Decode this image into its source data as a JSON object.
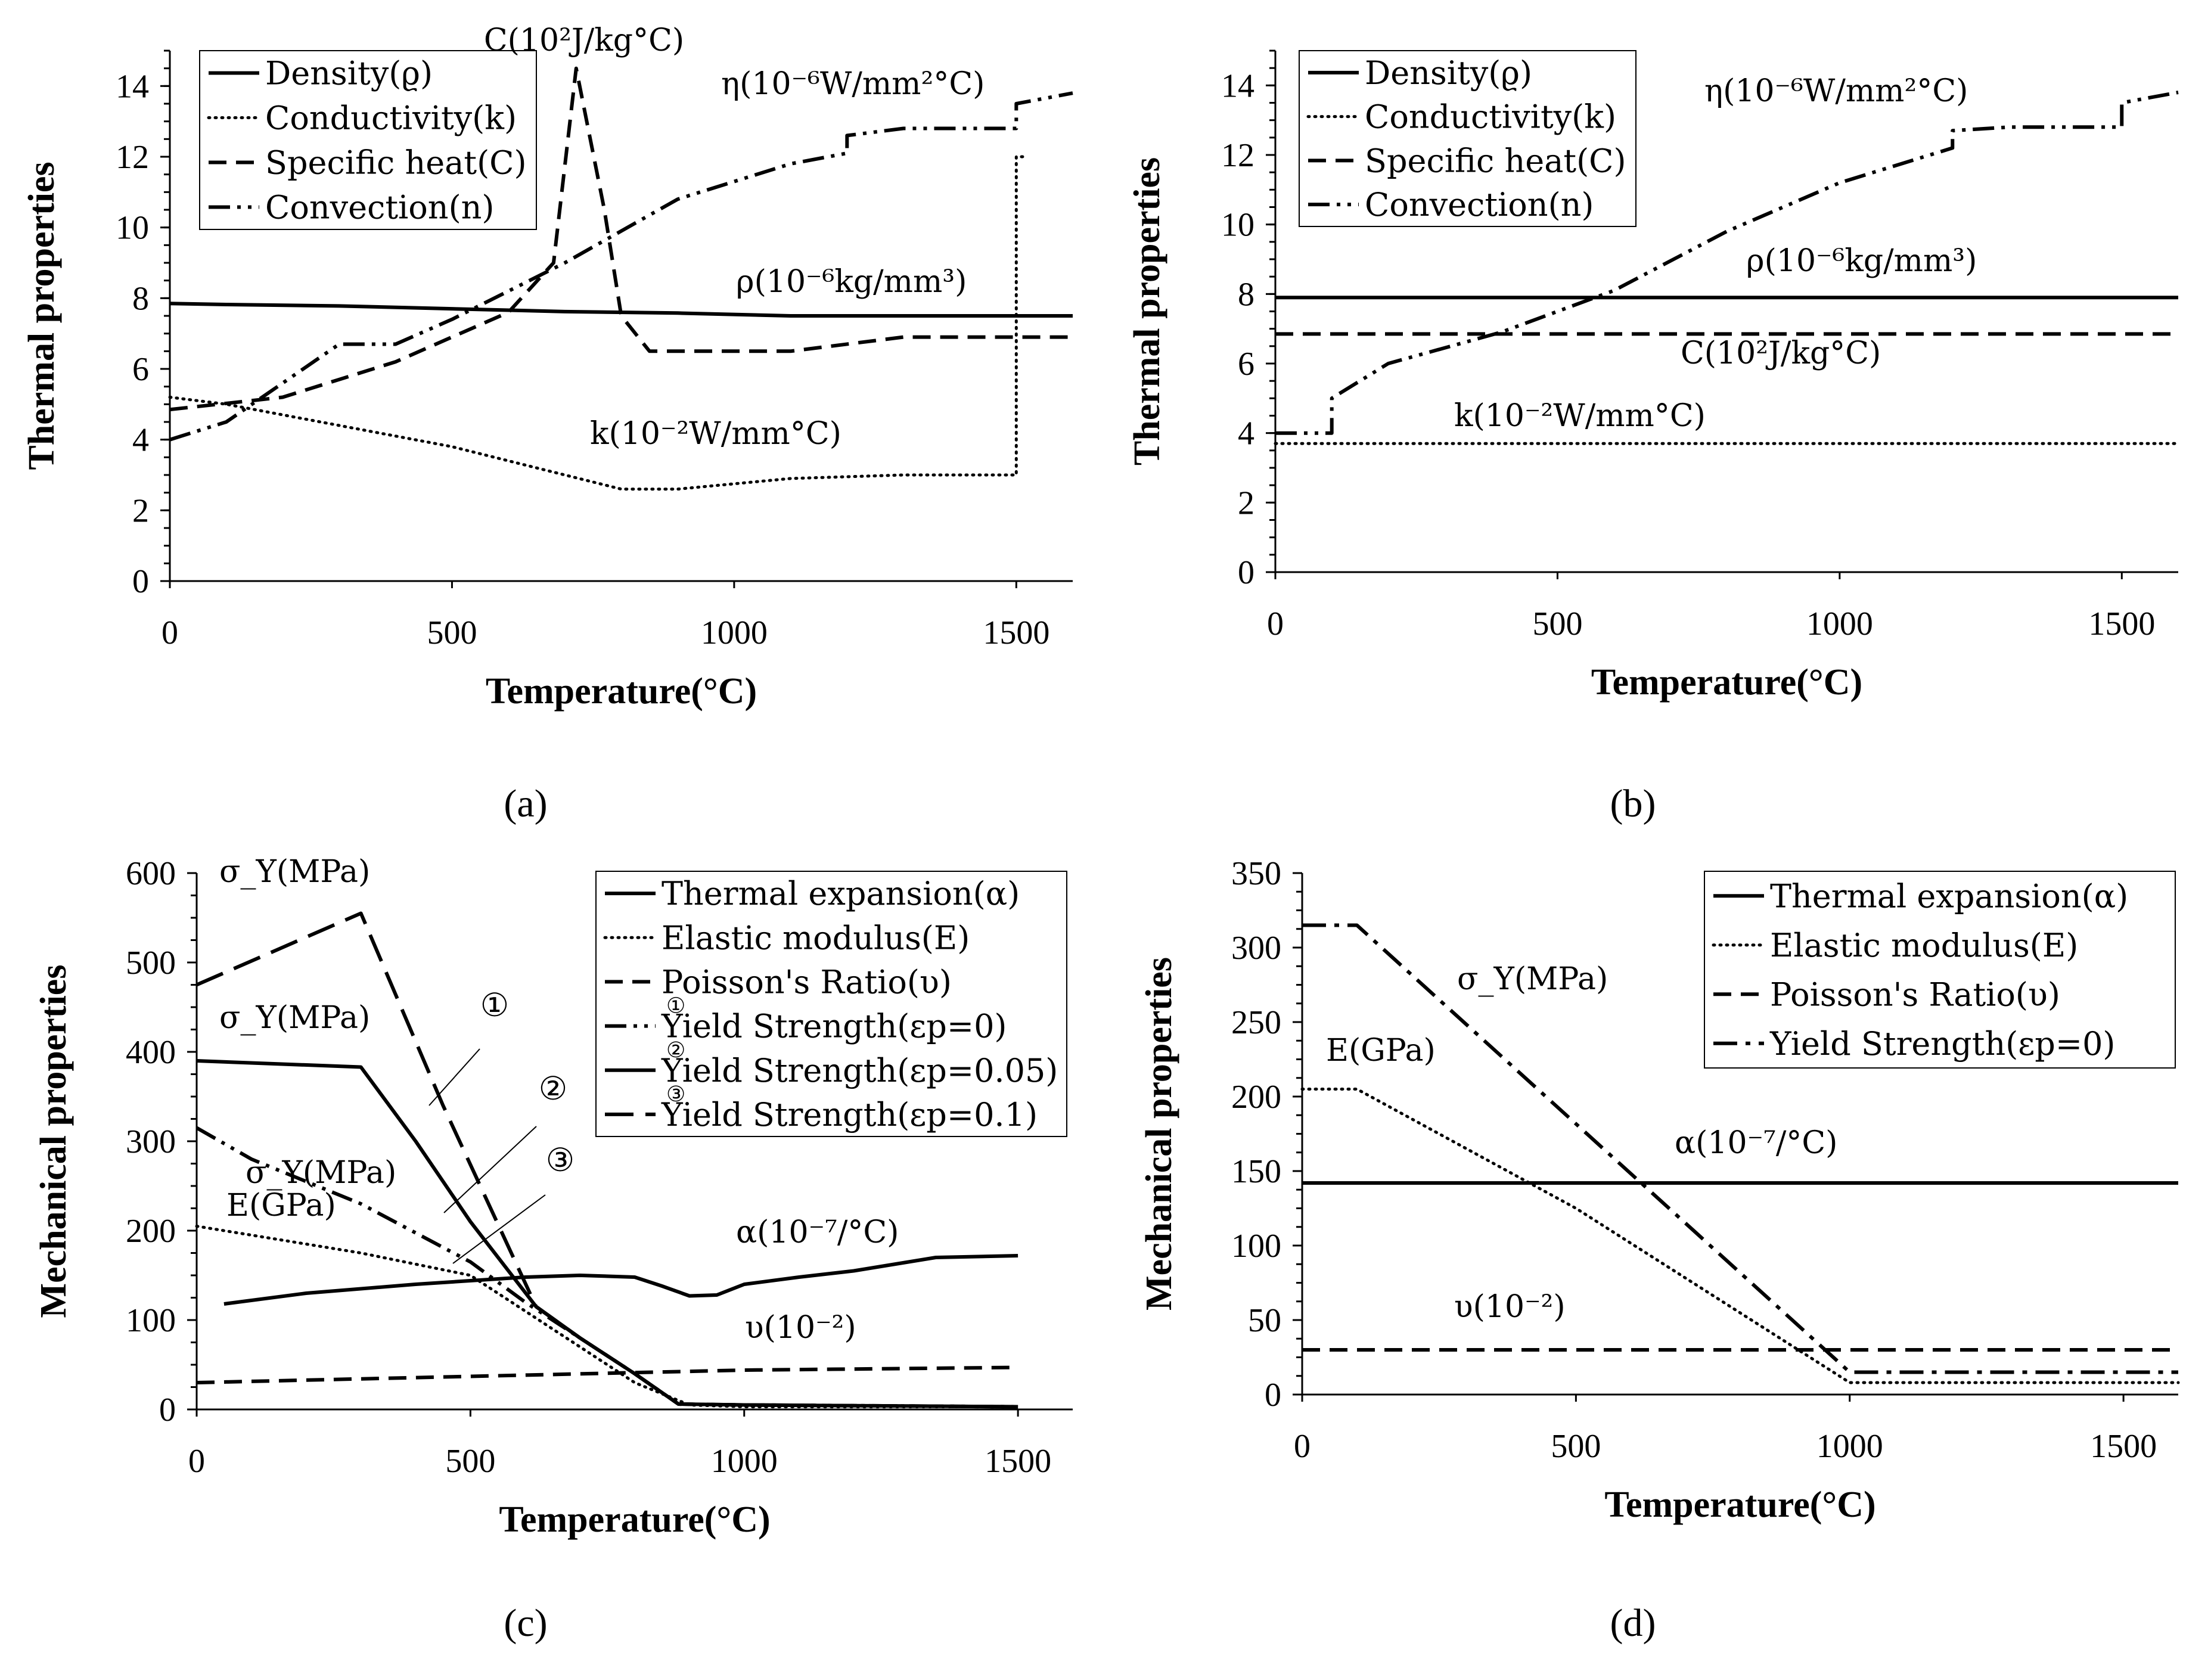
{
  "chart_data": [
    {
      "id": "a",
      "panel_label": "(a)",
      "type": "line",
      "xlabel": "Temperature(°C)",
      "ylabel": "Thermal properties",
      "xlim": [
        0,
        1600
      ],
      "ylim": [
        0,
        15
      ],
      "xticks": [
        0,
        500,
        1000,
        1500
      ],
      "yticks": [
        0,
        2,
        4,
        6,
        8,
        10,
        12,
        14
      ],
      "legend": [
        "Density(ϱ)",
        "Conductivity(k)",
        "Specific heat(C)",
        "Convection(n)"
      ],
      "legend_position": "top-left",
      "series": [
        {
          "name": "Density(ϱ)",
          "style": "solid",
          "x": [
            0,
            100,
            300,
            500,
            700,
            900,
            1100,
            1300,
            1500,
            1600
          ],
          "y": [
            7.85,
            7.82,
            7.78,
            7.7,
            7.62,
            7.58,
            7.5,
            7.5,
            7.5,
            7.5
          ]
        },
        {
          "name": "Conductivity(k)",
          "style": "dotted",
          "x": [
            0,
            100,
            300,
            500,
            700,
            800,
            900,
            1100,
            1300,
            1500,
            1500,
            1520
          ],
          "y": [
            5.2,
            5.0,
            4.4,
            3.8,
            3.0,
            2.6,
            2.6,
            2.9,
            3.0,
            3.0,
            12.0,
            12.0
          ]
        },
        {
          "name": "Specific heat(C)",
          "style": "dashed",
          "x": [
            0,
            200,
            400,
            600,
            680,
            720,
            770,
            800,
            850,
            900,
            1100,
            1300,
            1600
          ],
          "y": [
            4.85,
            5.2,
            6.2,
            7.6,
            9.0,
            14.5,
            10.5,
            7.5,
            6.5,
            6.5,
            6.5,
            6.9,
            6.9
          ]
        },
        {
          "name": "Convection(n)",
          "style": "dash-dot-dot",
          "x": [
            0,
            100,
            300,
            400,
            500,
            700,
            900,
            1100,
            1200,
            1200,
            1300,
            1500,
            1500,
            1600
          ],
          "y": [
            4.0,
            4.5,
            6.7,
            6.7,
            7.4,
            9.0,
            10.8,
            11.8,
            12.1,
            12.6,
            12.8,
            12.8,
            13.5,
            13.8
          ]
        }
      ],
      "annotations": [
        "C(10²J/kg°C)",
        "η(10⁻⁶W/mm²°C)",
        "ρ(10⁻⁶kg/mm³)",
        "k(10⁻²W/mm°C)"
      ]
    },
    {
      "id": "b",
      "panel_label": "(b)",
      "type": "line",
      "xlabel": "Temperature(°C)",
      "ylabel": "Thermal properties",
      "xlim": [
        0,
        1600
      ],
      "ylim": [
        0,
        15
      ],
      "xticks": [
        0,
        500,
        1000,
        1500
      ],
      "yticks": [
        0,
        2,
        4,
        6,
        8,
        10,
        12,
        14
      ],
      "legend": [
        "Density(ϱ)",
        "Conductivity(k)",
        "Specific heat(C)",
        "Convection(n)"
      ],
      "legend_position": "top-left",
      "series": [
        {
          "name": "Density(ϱ)",
          "style": "solid",
          "x": [
            0,
            1600
          ],
          "y": [
            7.9,
            7.9
          ]
        },
        {
          "name": "Conductivity(k)",
          "style": "dotted",
          "x": [
            0,
            1600
          ],
          "y": [
            3.7,
            3.7
          ]
        },
        {
          "name": "Specific heat(C)",
          "style": "dashed",
          "x": [
            0,
            1600
          ],
          "y": [
            6.85,
            6.85
          ]
        },
        {
          "name": "Convection(n)",
          "style": "dash-dot-dot",
          "x": [
            0,
            100,
            100,
            200,
            400,
            600,
            800,
            1000,
            1200,
            1200,
            1300,
            1500,
            1500,
            1600
          ],
          "y": [
            4.0,
            4.0,
            5.0,
            6.0,
            6.9,
            8.1,
            9.8,
            11.2,
            12.2,
            12.7,
            12.8,
            12.8,
            13.5,
            13.8
          ]
        }
      ],
      "annotations": [
        "η(10⁻⁶W/mm²°C)",
        "ρ(10⁻⁶kg/mm³)",
        "C(10²J/kg°C)",
        "k(10⁻²W/mm°C)"
      ]
    },
    {
      "id": "c",
      "panel_label": "(c)",
      "type": "line",
      "xlabel": "Temperature(°C)",
      "ylabel": "Mechanical properties",
      "xlim": [
        0,
        1600
      ],
      "ylim": [
        0,
        600
      ],
      "xticks": [
        0,
        500,
        1000,
        1500
      ],
      "yticks": [
        0,
        100,
        200,
        300,
        400,
        500,
        600
      ],
      "legend": [
        "Thermal expansion(α)",
        "Elastic modulus(E)",
        "Poisson's Ratio(υ)",
        "Yield Strength(εp=0)",
        "Yield Strength(εp=0.05)",
        "Yield Strength(εp=0.1)"
      ],
      "legend_markers": [
        "",
        "",
        "",
        "①",
        "②",
        "③"
      ],
      "legend_position": "top-right",
      "series": [
        {
          "name": "Thermal expansion(α)",
          "style": "solid",
          "x": [
            50,
            200,
            400,
            600,
            700,
            800,
            850,
            900,
            950,
            1000,
            1100,
            1200,
            1300,
            1350,
            1500
          ],
          "y": [
            118,
            130,
            140,
            148,
            150,
            148,
            138,
            127,
            128,
            140,
            148,
            155,
            165,
            170,
            172
          ]
        },
        {
          "name": "Elastic modulus(E)",
          "style": "dotted",
          "x": [
            0,
            100,
            300,
            500,
            600,
            700,
            800,
            900,
            1000,
            1500
          ],
          "y": [
            205,
            195,
            175,
            150,
            110,
            70,
            30,
            5,
            3,
            3
          ]
        },
        {
          "name": "Poisson's Ratio(υ)",
          "style": "dashed",
          "x": [
            0,
            500,
            1000,
            1500
          ],
          "y": [
            30,
            37,
            44,
            47
          ]
        },
        {
          "name": "Yield Strength(εp=0)",
          "style": "dash-dot-dot",
          "x": [
            0,
            100,
            300,
            500,
            600,
            700,
            800,
            880,
            1000,
            1500
          ],
          "y": [
            315,
            280,
            230,
            165,
            120,
            80,
            40,
            6,
            5,
            3
          ]
        },
        {
          "name": "Yield Strength(εp=0.05)",
          "style": "solid",
          "x": [
            0,
            300,
            400,
            500,
            620,
            700,
            800,
            880,
            1000,
            1500
          ],
          "y": [
            390,
            383,
            300,
            210,
            115,
            80,
            40,
            6,
            5,
            3
          ]
        },
        {
          "name": "Yield Strength(εp=0.1)",
          "style": "long-dash",
          "x": [
            0,
            300,
            450,
            620,
            700,
            800,
            880,
            1000,
            1500
          ],
          "y": [
            475,
            555,
            340,
            115,
            80,
            40,
            6,
            5,
            3
          ]
        }
      ],
      "annotations": [
        "σ_Y(MPa)",
        "σ_Y(MPa)",
        "σ_Y(MPa)",
        "E(GPa)",
        "α(10⁻⁷/°C)",
        "υ(10⁻²)",
        "①",
        "②",
        "③"
      ]
    },
    {
      "id": "d",
      "panel_label": "(d)",
      "type": "line",
      "xlabel": "Temperature(°C)",
      "ylabel": "Mechanical properties",
      "xlim": [
        0,
        1600
      ],
      "ylim": [
        0,
        350
      ],
      "xticks": [
        0,
        500,
        1000,
        1500
      ],
      "yticks": [
        0,
        50,
        100,
        150,
        200,
        250,
        300,
        350
      ],
      "legend": [
        "Thermal expansion(α)",
        "Elastic modulus(E)",
        "Poisson's Ratio(υ)",
        "Yield Strength(εp=0)"
      ],
      "legend_position": "top-right",
      "series": [
        {
          "name": "Thermal expansion(α)",
          "style": "solid",
          "x": [
            0,
            1600
          ],
          "y": [
            142,
            142
          ]
        },
        {
          "name": "Elastic modulus(E)",
          "style": "dotted",
          "x": [
            0,
            100,
            500,
            1000,
            1600
          ],
          "y": [
            205,
            205,
            125,
            8,
            8
          ]
        },
        {
          "name": "Poisson's Ratio(υ)",
          "style": "dashed",
          "x": [
            0,
            1600
          ],
          "y": [
            30,
            30
          ]
        },
        {
          "name": "Yield Strength(εp=0)",
          "style": "dash-dot",
          "x": [
            0,
            100,
            1000,
            1600
          ],
          "y": [
            315,
            315,
            15,
            15
          ]
        }
      ],
      "annotations": [
        "σ_Y(MPa)",
        "E(GPa)",
        "α(10⁻⁷/°C)",
        "υ(10⁻²)"
      ]
    }
  ]
}
